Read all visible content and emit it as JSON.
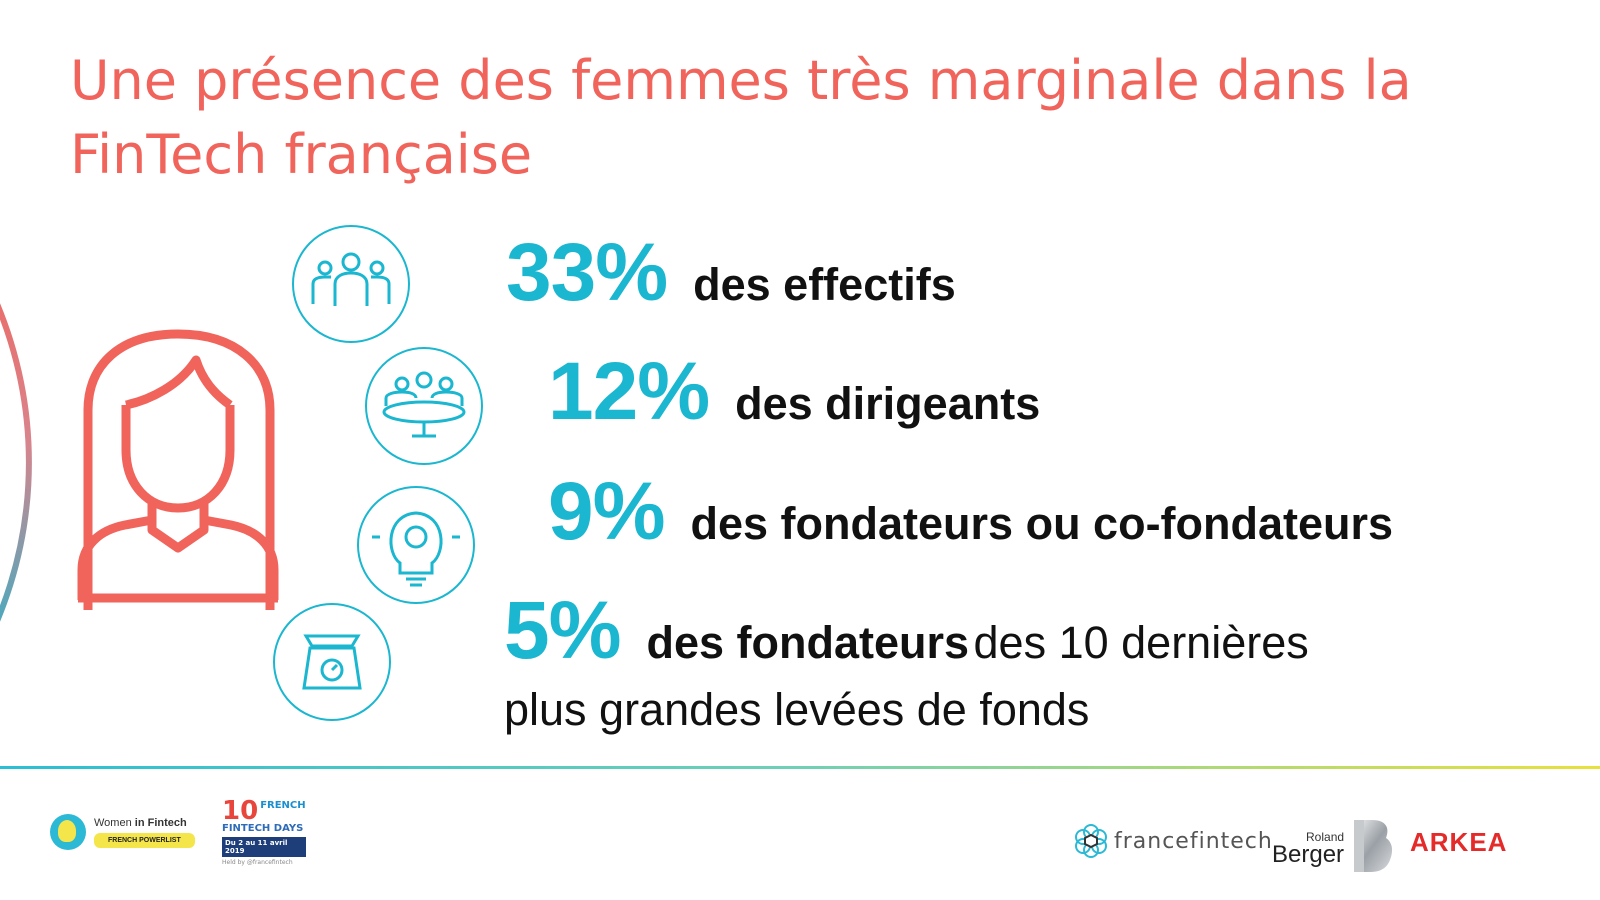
{
  "title": {
    "line1": "Une présence des femmes très marginale dans la",
    "line2": "FinTech française"
  },
  "stats": [
    {
      "percent": "33%",
      "label": "des effectifs"
    },
    {
      "percent": "12%",
      "label": "des dirigeants"
    },
    {
      "percent": "9%",
      "label": "des fondateurs ou co-fondateurs"
    },
    {
      "percent": "5%",
      "label_bold": "des fondateurs",
      "label_regular": "des 10 dernières",
      "line2": "plus grandes levées de fonds"
    }
  ],
  "icons": {
    "woman": "woman-avatar-icon",
    "icon1": "team-icon",
    "icon2": "boardroom-icon",
    "icon3": "lightbulb-gear-icon",
    "icon4": "scale-icon"
  },
  "colors": {
    "title": "#f0645c",
    "percent": "#1bb6cf",
    "woman": "#f0645c",
    "icon": "#1bb6cf",
    "arc_start": "#f0645c",
    "arc_end": "#1bb6cf"
  },
  "footer": {
    "women_in_fintech": {
      "name_plain": "Women",
      "name_bold": "in Fintech",
      "tag": "FRENCH POWERLIST"
    },
    "french_fintech_days": {
      "number": "10",
      "word1": "FRENCH",
      "word2": "FINTECH DAYS",
      "dates": "Du 2 au 11 avril 2019",
      "small": "Held by @francefintech"
    },
    "francefintech": "francefintech",
    "roland_berger": {
      "small": "Roland",
      "big": "Berger"
    },
    "arkea": "ARKEA"
  }
}
